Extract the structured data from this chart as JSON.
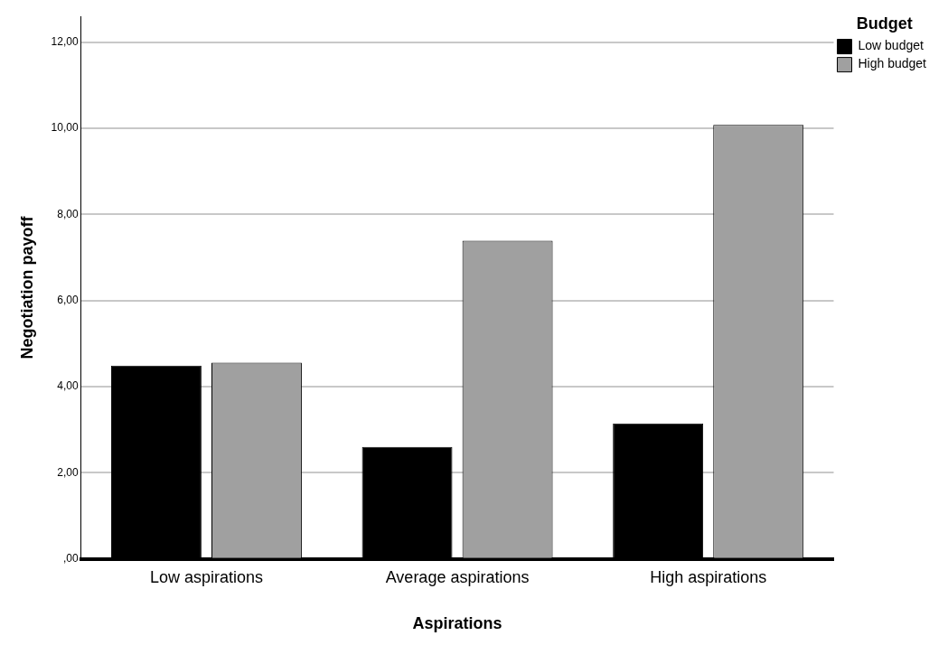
{
  "chart_data": {
    "type": "bar",
    "xlabel": "Aspirations",
    "ylabel": "Negotiation payoff",
    "legend_title": "Budget",
    "categories": [
      "Low aspirations",
      "Average aspirations",
      "High aspirations"
    ],
    "series": [
      {
        "name": "Low budget",
        "color": "#000000",
        "values": [
          4.49,
          2.6,
          3.15
        ]
      },
      {
        "name": "High budget",
        "color": "#a0a0a0",
        "values": [
          4.56,
          7.39,
          10.08
        ]
      }
    ],
    "ylim": [
      0,
      12.6
    ],
    "yticks": [
      {
        "value": 0,
        "label": ",00"
      },
      {
        "value": 2,
        "label": "2,00"
      },
      {
        "value": 4,
        "label": "4,00"
      },
      {
        "value": 6,
        "label": "6,00"
      },
      {
        "value": 8,
        "label": "8,00"
      },
      {
        "value": 10,
        "label": "10,00"
      },
      {
        "value": 12,
        "label": "12,00"
      }
    ],
    "grid": "y",
    "legend": "top right"
  }
}
